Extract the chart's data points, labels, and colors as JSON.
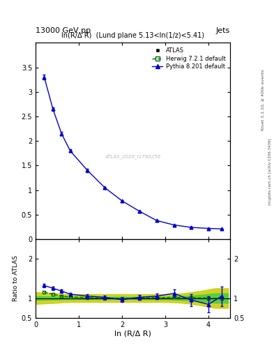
{
  "title_left": "13000 GeV pp",
  "title_right": "Jets",
  "main_title": "ln(R/Δ R)  (Lund plane 5.13<ln(1/z)<5.41)",
  "xlabel": "ln (R/Δ R)",
  "ylabel_ratio": "Ratio to ATLAS",
  "right_label": "Rivet 3.1.10, ≥ 400k events",
  "right_label2": "mcplots.cern.ch [arXiv:1306.3436]",
  "watermark": "ATLAS_2020_I1790256",
  "pythia_x": [
    0.2,
    0.4,
    0.6,
    0.8,
    1.2,
    1.6,
    2.0,
    2.4,
    2.8,
    3.2,
    3.6,
    4.0,
    4.3
  ],
  "pythia_y": [
    3.3,
    2.65,
    2.15,
    1.8,
    1.4,
    1.05,
    0.78,
    0.57,
    0.38,
    0.29,
    0.24,
    0.22,
    0.21
  ],
  "pythia_yerr": [
    0.05,
    0.04,
    0.04,
    0.03,
    0.03,
    0.02,
    0.02,
    0.02,
    0.01,
    0.01,
    0.01,
    0.01,
    0.01
  ],
  "ratio_pythia_x": [
    0.2,
    0.4,
    0.6,
    0.8,
    1.2,
    1.6,
    2.0,
    2.4,
    2.8,
    3.2,
    3.6,
    4.0,
    4.3
  ],
  "ratio_pythia_y": [
    1.32,
    1.25,
    1.18,
    1.1,
    1.05,
    1.02,
    0.96,
    1.02,
    1.05,
    1.12,
    0.95,
    0.84,
    1.05
  ],
  "ratio_pythia_yerr": [
    0.04,
    0.04,
    0.04,
    0.04,
    0.04,
    0.05,
    0.05,
    0.06,
    0.07,
    0.1,
    0.15,
    0.2,
    0.25
  ],
  "ratio_herwig_x": [
    0.2,
    0.4,
    0.6,
    0.8,
    1.2,
    1.6,
    2.0,
    2.4,
    2.8,
    3.2,
    3.6,
    4.0,
    4.3
  ],
  "ratio_herwig_y": [
    1.15,
    1.1,
    1.05,
    1.03,
    1.01,
    1.0,
    0.99,
    1.0,
    1.01,
    1.02,
    1.01,
    1.0,
    0.99
  ],
  "band_x_edges": [
    0.0,
    0.3,
    0.5,
    0.7,
    1.0,
    1.4,
    1.8,
    2.2,
    2.6,
    3.0,
    3.4,
    3.8,
    4.15,
    4.45
  ],
  "band_green_low": [
    0.95,
    0.96,
    0.96,
    0.97,
    0.97,
    0.97,
    0.97,
    0.97,
    0.97,
    0.97,
    0.95,
    0.92,
    0.88,
    0.88
  ],
  "band_green_high": [
    1.05,
    1.04,
    1.04,
    1.03,
    1.03,
    1.03,
    1.03,
    1.03,
    1.03,
    1.03,
    1.05,
    1.08,
    1.12,
    1.12
  ],
  "band_yellow_low": [
    0.85,
    0.87,
    0.88,
    0.9,
    0.9,
    0.9,
    0.9,
    0.9,
    0.9,
    0.9,
    0.88,
    0.82,
    0.75,
    0.75
  ],
  "band_yellow_high": [
    1.15,
    1.13,
    1.12,
    1.1,
    1.1,
    1.1,
    1.1,
    1.1,
    1.1,
    1.1,
    1.12,
    1.18,
    1.25,
    1.25
  ],
  "main_ylim": [
    0.0,
    4.0
  ],
  "main_yticks": [
    0,
    0.5,
    1,
    1.5,
    2,
    2.5,
    3,
    3.5
  ],
  "ratio_ylim": [
    0.5,
    2.5
  ],
  "ratio_yticks": [
    0.5,
    1.0,
    2.0
  ],
  "ratio_yticklabels": [
    "0.5",
    "1",
    "2"
  ],
  "xlim": [
    0.0,
    4.5
  ],
  "xticks": [
    0,
    1,
    2,
    3,
    4
  ],
  "color_pythia": "#0000cc",
  "color_herwig": "#006600",
  "color_atlas": "#000000",
  "color_band_green": "#44cc44",
  "color_band_yellow": "#cccc00",
  "bg_color": "#ffffff"
}
